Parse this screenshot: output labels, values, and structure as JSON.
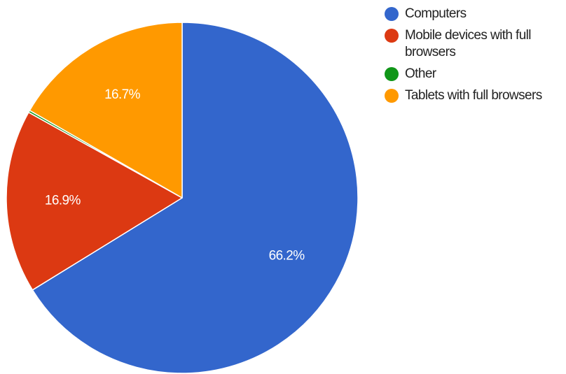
{
  "chart_data": {
    "type": "pie",
    "title": "",
    "slices": [
      {
        "label": "Computers",
        "value": 66.2,
        "display": "66.2%",
        "color": "#3366cc"
      },
      {
        "label": "Mobile devices with full browsers",
        "value": 16.9,
        "display": "16.9%",
        "color": "#dc3912"
      },
      {
        "label": "Other",
        "value": 0.2,
        "display": "",
        "color": "#109618"
      },
      {
        "label": "Tablets with full browsers",
        "value": 16.7,
        "display": "16.7%",
        "color": "#ff9900"
      }
    ],
    "legend": {
      "position": "right",
      "items": [
        {
          "label": "Computers",
          "color": "#3366cc"
        },
        {
          "label": "Mobile devices with full browsers",
          "color": "#dc3912"
        },
        {
          "label": "Other",
          "color": "#109618"
        },
        {
          "label": "Tablets with full browsers",
          "color": "#ff9900"
        }
      ]
    },
    "start_angle_deg": 0,
    "direction": "clockwise"
  }
}
